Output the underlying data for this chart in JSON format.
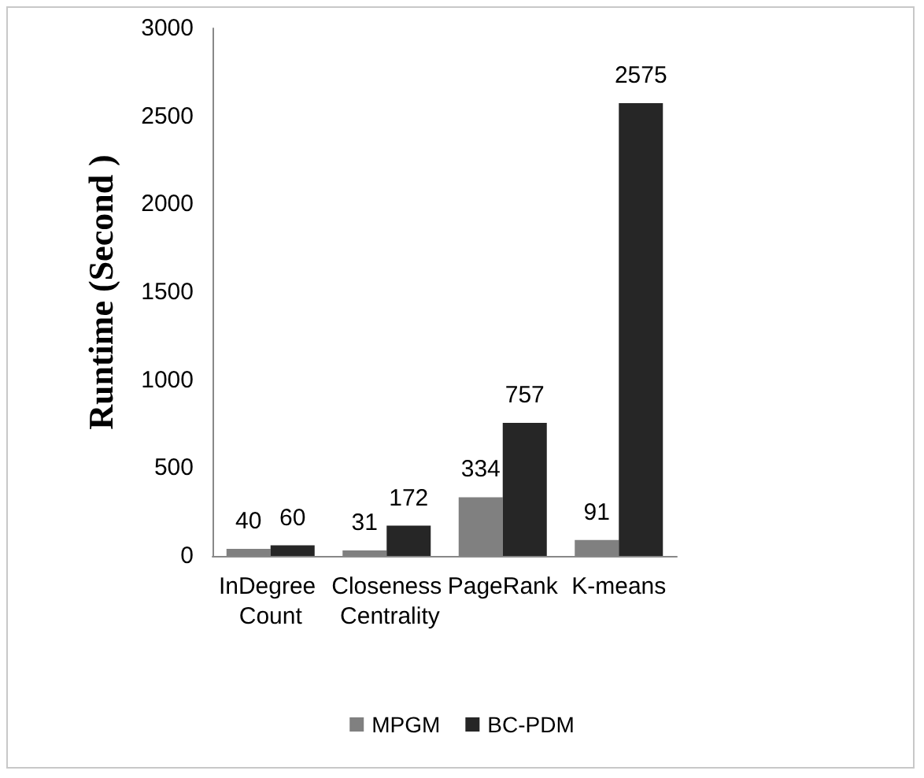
{
  "chart_data": {
    "type": "bar",
    "ylabel": "Runtime (Second )",
    "categories": [
      "InDegree Count",
      "Closeness Centrality",
      "PageRank",
      "K-means"
    ],
    "series": [
      {
        "name": "MPGM",
        "color": "#808080",
        "values": [
          40,
          31,
          334,
          91
        ]
      },
      {
        "name": "BC-PDM",
        "color": "#262626",
        "values": [
          60,
          172,
          757,
          2575
        ]
      }
    ],
    "ylim": [
      0,
      3000
    ],
    "yticks": [
      0,
      500,
      1000,
      1500,
      2000,
      2500,
      3000
    ],
    "grid": false,
    "legend": "bottom",
    "data_labels": true
  }
}
